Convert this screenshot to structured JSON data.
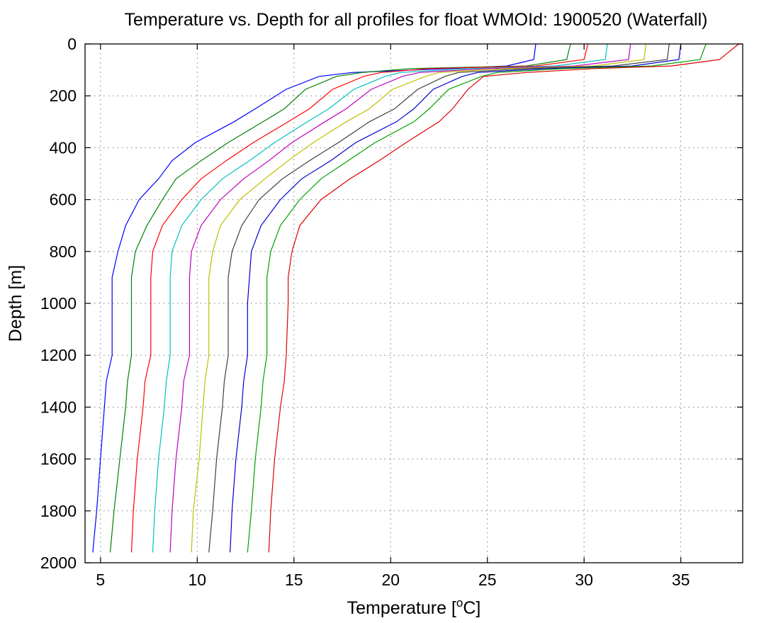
{
  "chart_data": {
    "type": "line",
    "title": "Temperature vs. Depth for all profiles for float WMOId: 1900520 (Waterfall)",
    "xlabel_prefix": "Temperature [",
    "xlabel_sup": "o",
    "xlabel_suffix": "C]",
    "ylabel": "Depth [m]",
    "xlim": [
      4.2,
      38.2
    ],
    "ylim": [
      0,
      2000
    ],
    "y_reversed": true,
    "grid": true,
    "x_ticks": [
      5,
      10,
      15,
      20,
      25,
      30,
      35
    ],
    "y_ticks": [
      0,
      200,
      400,
      600,
      800,
      1000,
      1200,
      1400,
      1600,
      1800,
      2000
    ],
    "depths": [
      0,
      60,
      85,
      95,
      110,
      125,
      175,
      250,
      300,
      380,
      450,
      520,
      600,
      700,
      800,
      900,
      1000,
      1200,
      1300,
      1400,
      1600,
      1800,
      1960
    ],
    "series": [
      {
        "color": "#0000ff",
        "values": [
          27.5,
          27.4,
          26.0,
          23.0,
          18.0,
          16.3,
          14.6,
          13.0,
          11.9,
          9.9,
          8.7,
          8.0,
          7.0,
          6.3,
          5.9,
          5.6,
          5.6,
          5.6,
          5.3,
          5.2,
          5.0,
          4.8,
          4.6
        ]
      },
      {
        "color": "#008000",
        "values": [
          29.3,
          29.1,
          27.0,
          21.0,
          18.5,
          17.2,
          15.6,
          14.5,
          13.4,
          11.6,
          10.2,
          8.9,
          8.2,
          7.4,
          6.8,
          6.6,
          6.6,
          6.6,
          6.4,
          6.3,
          6.0,
          5.7,
          5.5
        ]
      },
      {
        "color": "#ff0000",
        "values": [
          30.2,
          30.0,
          27.5,
          22.0,
          19.5,
          18.6,
          17.0,
          15.8,
          14.7,
          12.9,
          11.5,
          10.2,
          9.2,
          8.2,
          7.7,
          7.6,
          7.6,
          7.6,
          7.3,
          7.2,
          6.9,
          6.7,
          6.6
        ]
      },
      {
        "color": "#00bfbf",
        "values": [
          31.2,
          31.1,
          28.5,
          24.0,
          20.5,
          19.7,
          18.1,
          16.8,
          15.7,
          14.0,
          12.7,
          11.3,
          10.2,
          9.2,
          8.7,
          8.6,
          8.6,
          8.6,
          8.4,
          8.3,
          8.0,
          7.8,
          7.7
        ]
      },
      {
        "color": "#bf00bf",
        "values": [
          32.4,
          32.3,
          29.5,
          25.0,
          21.5,
          20.6,
          19.0,
          17.7,
          16.6,
          14.9,
          13.7,
          12.4,
          11.2,
          10.2,
          9.7,
          9.6,
          9.6,
          9.6,
          9.3,
          9.2,
          8.9,
          8.7,
          8.6
        ]
      },
      {
        "color": "#bfbf00",
        "values": [
          33.2,
          33.1,
          30.5,
          26.0,
          22.5,
          21.8,
          20.1,
          18.9,
          17.7,
          16.0,
          14.7,
          13.5,
          12.2,
          11.2,
          10.8,
          10.6,
          10.6,
          10.6,
          10.4,
          10.3,
          10.1,
          9.8,
          9.7
        ]
      },
      {
        "color": "#404040",
        "values": [
          34.4,
          34.3,
          31.5,
          27.0,
          23.5,
          22.8,
          21.4,
          20.2,
          18.9,
          17.3,
          15.8,
          14.4,
          13.2,
          12.3,
          11.8,
          11.6,
          11.6,
          11.6,
          11.4,
          11.3,
          11.0,
          10.8,
          10.6
        ]
      },
      {
        "color": "#0000cc",
        "values": [
          35.0,
          34.9,
          32.5,
          28.0,
          24.5,
          23.7,
          22.2,
          21.2,
          20.3,
          18.2,
          16.9,
          15.4,
          14.3,
          13.3,
          12.8,
          12.7,
          12.6,
          12.6,
          12.4,
          12.3,
          12.0,
          11.8,
          11.7
        ]
      },
      {
        "color": "#00a000",
        "values": [
          36.3,
          36.0,
          33.5,
          29.0,
          25.5,
          24.7,
          23.0,
          22.0,
          21.2,
          19.2,
          17.8,
          16.4,
          15.3,
          14.3,
          13.8,
          13.6,
          13.6,
          13.6,
          13.4,
          13.3,
          13.0,
          12.8,
          12.6
        ]
      },
      {
        "color": "#e00000",
        "values": [
          38.0,
          37.0,
          34.5,
          30.5,
          27.0,
          24.8,
          24.0,
          23.2,
          22.5,
          20.8,
          19.4,
          17.9,
          16.4,
          15.3,
          14.9,
          14.7,
          14.7,
          14.6,
          14.5,
          14.3,
          14.0,
          13.8,
          13.7
        ]
      }
    ]
  }
}
